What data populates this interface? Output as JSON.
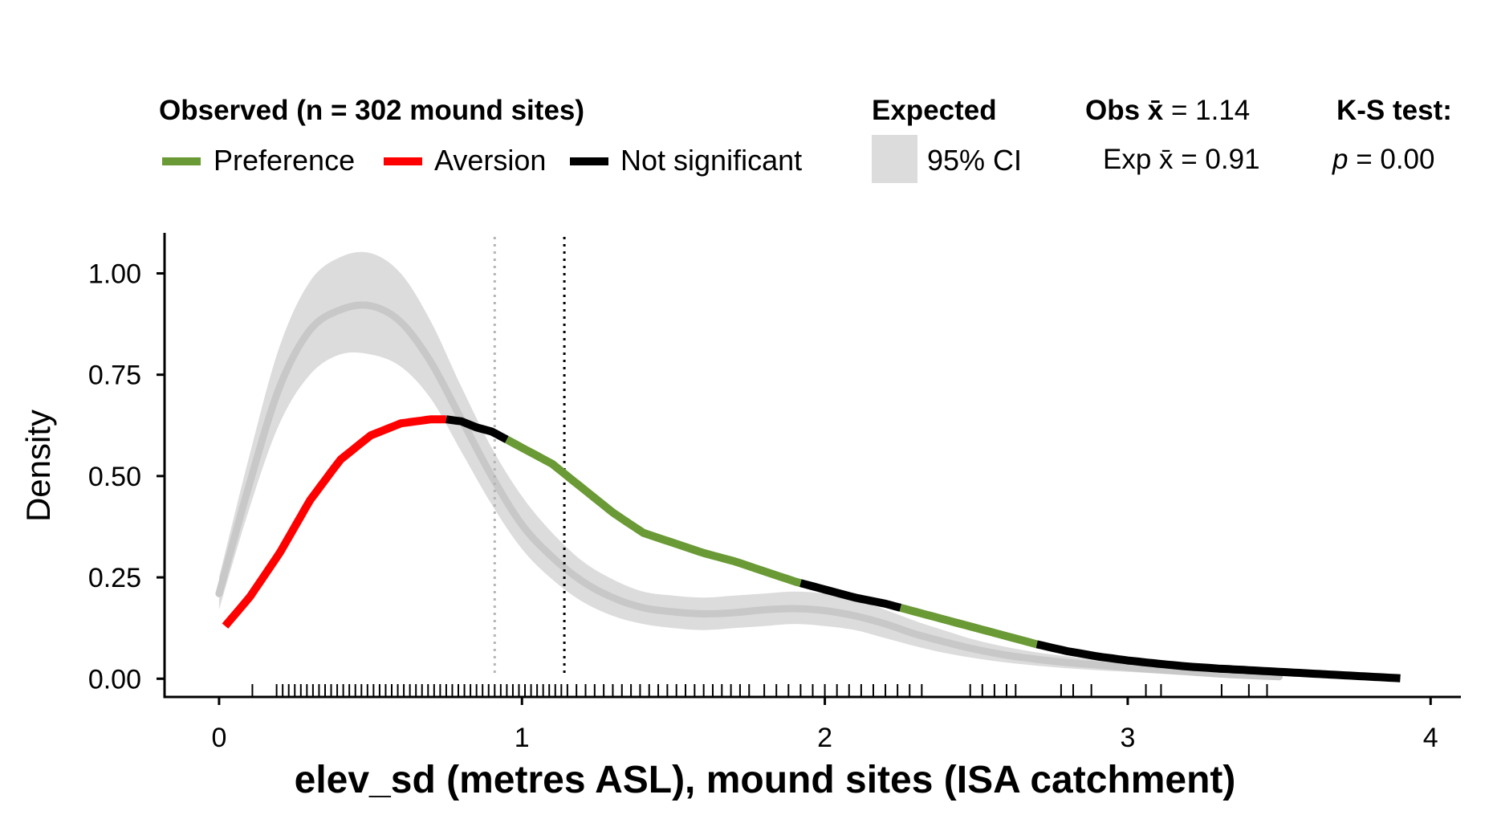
{
  "legend": {
    "observed_title": "Observed (n = 302 mound sites)",
    "preference_label": "Preference",
    "aversion_label": "Aversion",
    "notsig_label": "Not significant",
    "expected_title": "Expected",
    "ci_label": "95% CI",
    "obs_mean_bold": "Obs x̄",
    "obs_mean_value": " = 1.14",
    "exp_mean_text": "Exp x̄ = 0.91",
    "ks_title": "K-S test:",
    "ks_p_symbol": "p",
    "ks_p_value": " = 0.00"
  },
  "colors": {
    "preference": "#6a9a35",
    "aversion": "#ff0000",
    "not_significant": "#000000",
    "ci_band": "#dcdcdc",
    "expected_line": "#c8c8c8"
  },
  "chart_data": {
    "type": "line",
    "xlabel": "elev_sd (metres ASL), mound sites (ISA catchment)",
    "ylabel": "Density",
    "xlim": [
      -0.18,
      4.1
    ],
    "ylim": [
      -0.045,
      1.1
    ],
    "xticks": [
      0,
      1,
      2,
      3,
      4
    ],
    "yticks": [
      0.0,
      0.25,
      0.5,
      0.75,
      1.0
    ],
    "ytick_labels": [
      "0.00",
      "0.25",
      "0.50",
      "0.75",
      "1.00"
    ],
    "expected_mean": 0.91,
    "observed_mean": 1.14,
    "observed": {
      "x": [
        0.02,
        0.1,
        0.2,
        0.3,
        0.4,
        0.5,
        0.6,
        0.7,
        0.75,
        0.8,
        0.85,
        0.9,
        0.95,
        1.0,
        1.1,
        1.2,
        1.3,
        1.4,
        1.5,
        1.6,
        1.7,
        1.8,
        1.9,
        2.0,
        2.1,
        2.2,
        2.3,
        2.4,
        2.5,
        2.6,
        2.7,
        2.8,
        2.9,
        3.0,
        3.1,
        3.2,
        3.3,
        3.4,
        3.5,
        3.6,
        3.7,
        3.8,
        3.9
      ],
      "y": [
        0.13,
        0.2,
        0.31,
        0.44,
        0.54,
        0.6,
        0.63,
        0.64,
        0.64,
        0.635,
        0.62,
        0.61,
        0.59,
        0.57,
        0.53,
        0.47,
        0.41,
        0.36,
        0.335,
        0.31,
        0.29,
        0.265,
        0.24,
        0.22,
        0.2,
        0.185,
        0.165,
        0.145,
        0.125,
        0.105,
        0.085,
        0.068,
        0.055,
        0.045,
        0.037,
        0.03,
        0.025,
        0.021,
        0.017,
        0.013,
        0.009,
        0.005,
        0.001
      ]
    },
    "significance_segments": [
      {
        "from": 0.02,
        "to": 0.75,
        "class": "aversion"
      },
      {
        "from": 0.75,
        "to": 0.95,
        "class": "not_significant"
      },
      {
        "from": 0.95,
        "to": 1.92,
        "class": "preference"
      },
      {
        "from": 1.92,
        "to": 2.25,
        "class": "not_significant"
      },
      {
        "from": 2.25,
        "to": 2.7,
        "class": "preference"
      },
      {
        "from": 2.7,
        "to": 3.9,
        "class": "not_significant"
      }
    ],
    "expected": {
      "x": [
        0.0,
        0.1,
        0.2,
        0.3,
        0.4,
        0.5,
        0.6,
        0.7,
        0.8,
        0.9,
        1.0,
        1.1,
        1.2,
        1.3,
        1.4,
        1.5,
        1.6,
        1.7,
        1.8,
        1.9,
        2.0,
        2.1,
        2.2,
        2.3,
        2.4,
        2.5,
        2.6,
        2.7,
        2.8,
        2.9,
        3.0,
        3.1,
        3.2,
        3.3,
        3.4,
        3.5
      ],
      "y": [
        0.21,
        0.48,
        0.72,
        0.86,
        0.91,
        0.92,
        0.88,
        0.78,
        0.64,
        0.5,
        0.38,
        0.3,
        0.24,
        0.2,
        0.175,
        0.165,
        0.16,
        0.163,
        0.17,
        0.173,
        0.168,
        0.155,
        0.135,
        0.11,
        0.09,
        0.072,
        0.058,
        0.048,
        0.04,
        0.034,
        0.028,
        0.022,
        0.017,
        0.012,
        0.008,
        0.005
      ],
      "lower": [
        0.17,
        0.42,
        0.63,
        0.75,
        0.8,
        0.8,
        0.77,
        0.69,
        0.56,
        0.43,
        0.32,
        0.245,
        0.19,
        0.155,
        0.135,
        0.125,
        0.12,
        0.125,
        0.13,
        0.135,
        0.13,
        0.12,
        0.1,
        0.08,
        0.063,
        0.05,
        0.04,
        0.032,
        0.026,
        0.021,
        0.017,
        0.013,
        0.009,
        0.006,
        0.004,
        0.002
      ],
      "upper": [
        0.25,
        0.55,
        0.82,
        0.98,
        1.04,
        1.05,
        1.0,
        0.88,
        0.72,
        0.57,
        0.45,
        0.36,
        0.29,
        0.245,
        0.215,
        0.205,
        0.2,
        0.205,
        0.21,
        0.215,
        0.21,
        0.195,
        0.17,
        0.142,
        0.118,
        0.095,
        0.078,
        0.065,
        0.055,
        0.047,
        0.04,
        0.033,
        0.026,
        0.02,
        0.014,
        0.01
      ]
    },
    "rug_x": [
      0.11,
      0.19,
      0.21,
      0.23,
      0.25,
      0.27,
      0.29,
      0.31,
      0.33,
      0.35,
      0.37,
      0.39,
      0.41,
      0.43,
      0.45,
      0.47,
      0.49,
      0.51,
      0.53,
      0.55,
      0.57,
      0.59,
      0.61,
      0.63,
      0.65,
      0.67,
      0.69,
      0.71,
      0.73,
      0.75,
      0.77,
      0.79,
      0.81,
      0.83,
      0.85,
      0.87,
      0.89,
      0.91,
      0.93,
      0.95,
      0.97,
      0.99,
      1.01,
      1.03,
      1.05,
      1.07,
      1.09,
      1.11,
      1.13,
      1.15,
      1.18,
      1.21,
      1.24,
      1.27,
      1.3,
      1.33,
      1.36,
      1.39,
      1.42,
      1.45,
      1.48,
      1.51,
      1.54,
      1.57,
      1.6,
      1.63,
      1.66,
      1.69,
      1.72,
      1.75,
      1.8,
      1.84,
      1.88,
      1.92,
      1.96,
      2.0,
      2.04,
      2.08,
      2.12,
      2.16,
      2.2,
      2.24,
      2.28,
      2.32,
      2.48,
      2.52,
      2.56,
      2.6,
      2.63,
      2.78,
      2.82,
      2.88,
      3.06,
      3.11,
      3.31,
      3.4,
      3.46
    ]
  }
}
